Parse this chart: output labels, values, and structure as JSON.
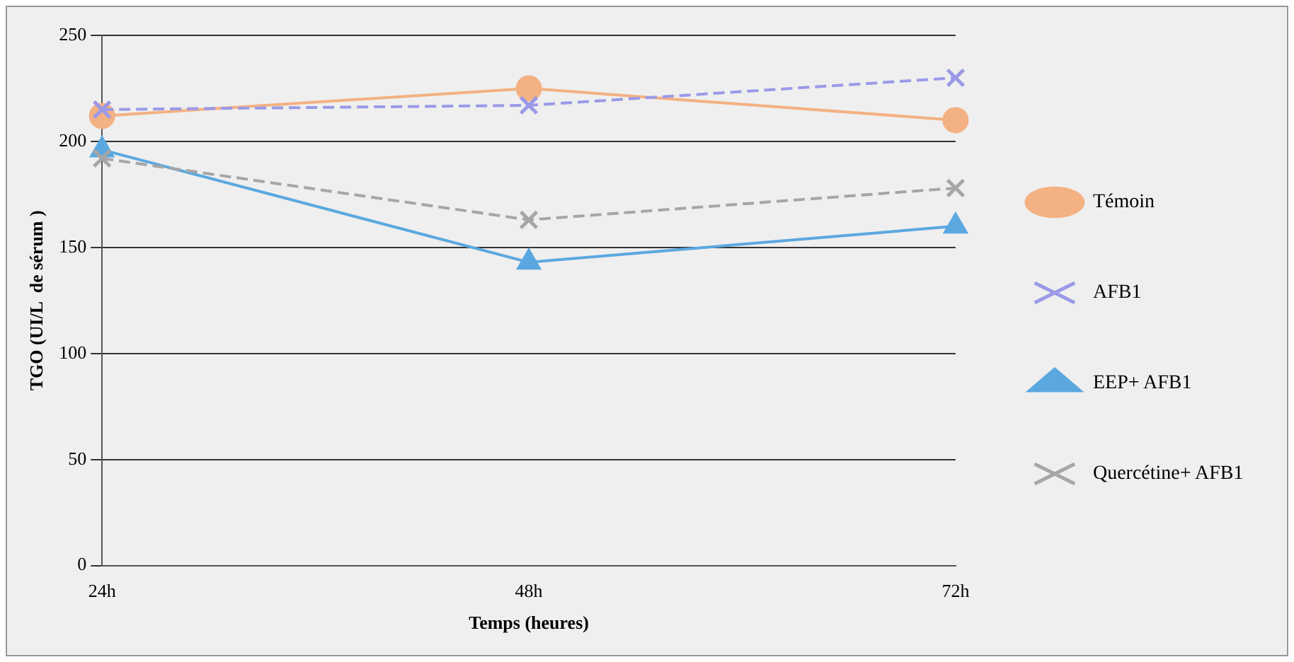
{
  "chart_data": {
    "type": "line",
    "xlabel": "Temps (heures)",
    "ylabel": "TGO (UI/L  de sérum )",
    "categories": [
      "24h",
      "48h",
      "72h"
    ],
    "series": [
      {
        "name": "Témoin",
        "color": "#f4b183",
        "values": [
          212,
          225,
          210
        ],
        "marker": "circle",
        "line_style": "solid"
      },
      {
        "name": "AFB1",
        "color": "#9a9ae8",
        "values": [
          215,
          217,
          230
        ],
        "marker": "cross",
        "line_style": "dashed"
      },
      {
        "name": "EEP+ AFB1",
        "color": "#5ba8e0",
        "values": [
          196,
          143,
          160
        ],
        "marker": "triangle",
        "line_style": "solid"
      },
      {
        "name": "Quercétine+ AFB1",
        "color": "#a6a6a6",
        "values": [
          192,
          163,
          178
        ],
        "marker": "cross",
        "line_style": "dashed"
      }
    ],
    "ylim": [
      0,
      250
    ],
    "yticks": [
      0,
      50,
      100,
      150,
      200,
      250
    ],
    "grid": "y",
    "legend": "right"
  }
}
